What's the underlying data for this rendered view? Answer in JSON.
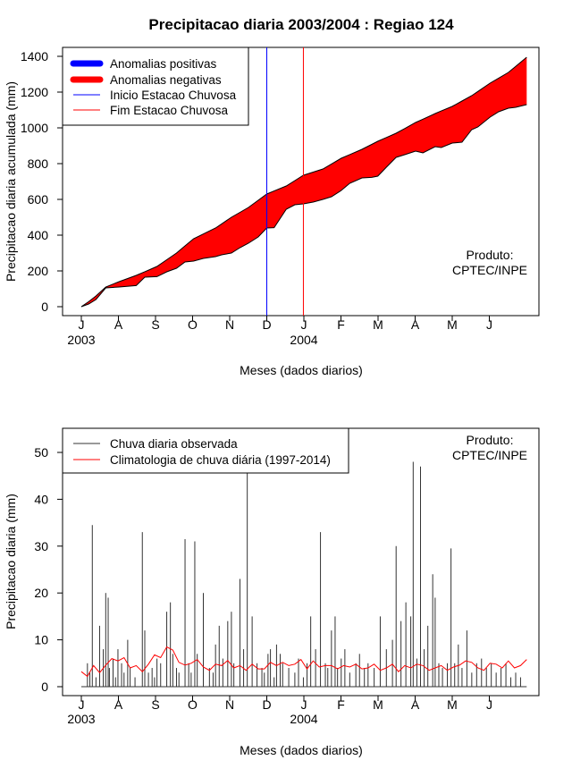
{
  "chart_data": [
    {
      "type": "area",
      "title": "Precipitacao diaria 2003/2004 : Regiao 124",
      "xlabel": "Meses (dados diarios)",
      "ylabel": "Precipitacao diaria acumulada (mm)",
      "month_ticks": [
        "J",
        "A",
        "S",
        "O",
        "N",
        "D",
        "J",
        "F",
        "M",
        "A",
        "M",
        "J"
      ],
      "year_labels": [
        {
          "month_index": 0,
          "label": "2003"
        },
        {
          "month_index": 6,
          "label": "2004"
        }
      ],
      "xlim_days": [
        0,
        365
      ],
      "ylim": [
        0,
        1400
      ],
      "yticks": [
        0,
        200,
        400,
        600,
        800,
        1000,
        1200,
        1400
      ],
      "legend": {
        "position": "top-left",
        "entries": [
          {
            "label": "Anomalias positivas",
            "color": "#0000ff",
            "style": "thick"
          },
          {
            "label": "Anomalias negativas",
            "color": "#ff0000",
            "style": "thick"
          },
          {
            "label": "Inicio Estacao Chuvosa",
            "color": "#0000ff",
            "style": "thin"
          },
          {
            "label": "Fim Estacao Chuvosa",
            "color": "#ff0000",
            "style": "thin"
          }
        ]
      },
      "season_start_day": 152,
      "season_end_day": 182,
      "product_label_1": "Produto:",
      "product_label_2": "CPTEC/INPE",
      "series": [
        {
          "name": "Climatologia acumulada",
          "days": [
            0,
            6,
            12,
            20,
            31,
            45,
            62,
            78,
            92,
            110,
            123,
            137,
            152,
            168,
            182,
            198,
            213,
            230,
            243,
            258,
            274,
            290,
            304,
            320,
            335,
            350,
            365
          ],
          "values": [
            0,
            28,
            60,
            110,
            140,
            175,
            225,
            300,
            380,
            440,
            500,
            555,
            630,
            675,
            735,
            770,
            830,
            880,
            925,
            970,
            1030,
            1080,
            1120,
            1180,
            1250,
            1310,
            1395
          ]
        },
        {
          "name": "Chuva observada acumulada",
          "days": [
            0,
            6,
            12,
            20,
            31,
            45,
            52,
            62,
            70,
            78,
            85,
            92,
            100,
            110,
            115,
            123,
            130,
            137,
            145,
            152,
            158,
            168,
            175,
            182,
            190,
            198,
            205,
            213,
            220,
            230,
            238,
            243,
            250,
            258,
            265,
            274,
            280,
            290,
            295,
            304,
            312,
            320,
            325,
            335,
            342,
            350,
            356,
            365
          ],
          "values": [
            0,
            15,
            40,
            105,
            110,
            118,
            165,
            168,
            195,
            215,
            250,
            255,
            270,
            280,
            290,
            300,
            330,
            355,
            390,
            440,
            442,
            545,
            570,
            575,
            585,
            600,
            615,
            650,
            690,
            720,
            723,
            730,
            780,
            835,
            850,
            870,
            860,
            895,
            890,
            915,
            920,
            990,
            1005,
            1060,
            1090,
            1110,
            1115,
            1130
          ]
        }
      ]
    },
    {
      "type": "bar",
      "xlabel": "Meses (dados diarios)",
      "ylabel": "Precipitacao diaria (mm)",
      "month_ticks": [
        "J",
        "A",
        "S",
        "O",
        "N",
        "D",
        "J",
        "F",
        "M",
        "A",
        "M",
        "J"
      ],
      "year_labels": [
        {
          "month_index": 0,
          "label": "2003"
        },
        {
          "month_index": 6,
          "label": "2004"
        }
      ],
      "xlim_days": [
        0,
        365
      ],
      "ylim": [
        0,
        52
      ],
      "yticks": [
        0,
        10,
        20,
        30,
        40,
        50
      ],
      "legend": {
        "position": "top-left",
        "entries": [
          {
            "label": "Chuva diaria observada",
            "color": "#333333"
          },
          {
            "label": "Climatologia de chuva diária (1997-2014)",
            "color": "#ff0000"
          }
        ]
      },
      "product_label_1": "Produto:",
      "product_label_2": "CPTEC/INPE",
      "observed": {
        "days": [
          5,
          7,
          9,
          12,
          15,
          18,
          20,
          22,
          23,
          26,
          28,
          30,
          33,
          35,
          38,
          40,
          44,
          50,
          52,
          55,
          58,
          60,
          62,
          65,
          70,
          73,
          75,
          78,
          80,
          85,
          88,
          90,
          93,
          95,
          100,
          105,
          108,
          110,
          113,
          116,
          120,
          123,
          125,
          130,
          133,
          136,
          140,
          144,
          148,
          150,
          153,
          155,
          158,
          160,
          163,
          165,
          170,
          175,
          178,
          182,
          185,
          188,
          192,
          196,
          200,
          202,
          205,
          208,
          210,
          213,
          216,
          220,
          225,
          228,
          232,
          235,
          240,
          245,
          250,
          255,
          258,
          262,
          266,
          270,
          272,
          275,
          278,
          281,
          284,
          288,
          290,
          293,
          296,
          300,
          303,
          306,
          309,
          312,
          316,
          320,
          324,
          328,
          332,
          336,
          340,
          344,
          348,
          352,
          356,
          360
        ],
        "values": [
          5,
          3,
          34.5,
          2,
          13,
          8,
          20,
          19,
          4,
          6,
          2,
          8,
          5,
          3,
          10,
          4,
          2,
          33,
          12,
          3,
          4,
          2,
          6,
          5,
          16,
          18,
          7,
          4,
          3,
          31.5,
          5,
          3,
          31,
          7,
          20,
          4,
          3,
          9,
          13,
          6,
          14,
          16,
          5,
          23,
          8,
          46,
          15,
          5,
          4,
          3,
          7,
          8,
          2,
          9,
          7,
          5,
          4,
          3,
          6,
          2,
          5,
          15,
          8,
          33,
          5,
          4,
          12,
          15,
          4,
          6,
          8,
          3,
          5,
          7,
          4,
          5,
          4,
          15,
          8,
          10,
          30,
          14,
          18,
          15,
          48,
          6,
          47,
          8,
          13,
          24,
          19,
          5,
          4,
          5,
          29.5,
          5,
          9,
          4,
          12,
          3,
          5,
          6,
          4,
          5,
          3,
          4,
          5,
          2,
          3,
          2
        ]
      },
      "climatology": {
        "days": [
          0,
          5,
          10,
          15,
          20,
          25,
          30,
          35,
          40,
          45,
          50,
          55,
          60,
          65,
          70,
          75,
          80,
          85,
          90,
          95,
          100,
          105,
          110,
          115,
          120,
          125,
          130,
          135,
          140,
          145,
          150,
          155,
          160,
          165,
          170,
          175,
          180,
          185,
          190,
          195,
          200,
          205,
          210,
          215,
          220,
          225,
          230,
          235,
          240,
          245,
          250,
          255,
          260,
          265,
          270,
          275,
          280,
          285,
          290,
          295,
          300,
          305,
          310,
          315,
          320,
          325,
          330,
          335,
          340,
          345,
          350,
          355,
          360,
          365
        ],
        "values": [
          3.2,
          2.2,
          4.5,
          3.0,
          4.6,
          6.0,
          5.5,
          6.2,
          4.0,
          4.5,
          3.2,
          4.8,
          6.8,
          6.2,
          8.5,
          7.8,
          5.2,
          4.6,
          5.0,
          5.8,
          4.2,
          3.5,
          4.8,
          4.5,
          5.6,
          4.0,
          4.5,
          3.5,
          4.8,
          3.8,
          3.8,
          5.2,
          4.5,
          5.2,
          4.5,
          4.8,
          5.8,
          3.8,
          5.5,
          4.2,
          4.5,
          4.5,
          3.8,
          4.5,
          4.2,
          4.8,
          3.8,
          4.0,
          4.8,
          3.5,
          4.0,
          4.8,
          3.2,
          4.5,
          4.0,
          4.8,
          4.5,
          3.5,
          4.0,
          4.5,
          3.5,
          4.2,
          4.6,
          5.5,
          5.2,
          4.0,
          3.5,
          5.0,
          4.8,
          4.0,
          5.5,
          4.0,
          4.5,
          5.8
        ]
      }
    }
  ]
}
